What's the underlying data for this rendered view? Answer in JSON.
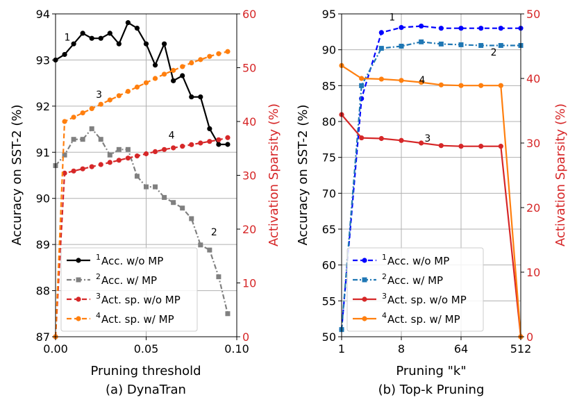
{
  "colors": {
    "acc_wo_mp": "#000000",
    "acc_w_mp": "#808080",
    "act_wo_mp": "#d62728",
    "act_w_mp": "#ff7f0e",
    "acc_wo_mp_b": "#0000ff",
    "acc_w_mp_b": "#1f77b4",
    "grid": "#b0b0b0",
    "axis_red": "#d62728"
  },
  "chart_data": [
    {
      "type": "line",
      "caption": "(a) DynaTran",
      "xlabel": "Pruning threshold",
      "ylabel": "Accuracy on SST-2 (%)",
      "y2label": "Activation Sparsity (%)",
      "xlim": [
        0.0,
        0.1
      ],
      "ylim": [
        87,
        94
      ],
      "y2lim": [
        0,
        60
      ],
      "xticks": [
        0.0,
        0.05,
        0.1
      ],
      "xtick_labels": [
        "0.00",
        "0.05",
        "0.10"
      ],
      "yticks": [
        87,
        88,
        89,
        90,
        91,
        92,
        93,
        94
      ],
      "y2ticks": [
        0,
        10,
        20,
        30,
        40,
        50,
        60
      ],
      "legend_position": "lower-left",
      "series": [
        {
          "name": "Acc. w/o MP",
          "sup": "1",
          "axis": "left",
          "style": "solid",
          "marker": "circle",
          "color": "#000000",
          "x": [
            0.0,
            0.005,
            0.01,
            0.015,
            0.02,
            0.025,
            0.03,
            0.035,
            0.04,
            0.045,
            0.05,
            0.055,
            0.06,
            0.065,
            0.07,
            0.075,
            0.08,
            0.085,
            0.09,
            0.095
          ],
          "y": [
            93.0,
            93.12,
            93.35,
            93.58,
            93.47,
            93.47,
            93.58,
            93.35,
            93.81,
            93.69,
            93.35,
            92.89,
            93.35,
            92.55,
            92.66,
            92.2,
            92.2,
            91.51,
            91.17,
            91.17
          ]
        },
        {
          "name": "Acc. w/ MP",
          "sup": "2",
          "axis": "left",
          "style": "dashdot",
          "marker": "square",
          "color": "#808080",
          "x": [
            0.0,
            0.005,
            0.01,
            0.015,
            0.02,
            0.025,
            0.03,
            0.035,
            0.04,
            0.045,
            0.05,
            0.055,
            0.06,
            0.065,
            0.07,
            0.075,
            0.08,
            0.085,
            0.09,
            0.095
          ],
          "y": [
            90.71,
            90.94,
            91.28,
            91.28,
            91.51,
            91.28,
            90.94,
            91.06,
            91.06,
            90.48,
            90.25,
            90.25,
            90.02,
            89.91,
            89.79,
            89.56,
            88.99,
            88.88,
            88.3,
            87.5
          ]
        },
        {
          "name": "Act. sp. w/o MP",
          "sup": "3",
          "axis": "right",
          "style": "dashed",
          "marker": "circle",
          "color": "#d62728",
          "x": [
            0.0,
            0.005,
            0.01,
            0.015,
            0.02,
            0.025,
            0.03,
            0.035,
            0.04,
            0.045,
            0.05,
            0.055,
            0.06,
            0.065,
            0.07,
            0.075,
            0.08,
            0.085,
            0.09,
            0.095
          ],
          "y": [
            0.0,
            30.4,
            30.8,
            31.2,
            31.6,
            32.0,
            32.4,
            32.8,
            33.2,
            33.6,
            34.0,
            34.4,
            34.8,
            35.1,
            35.4,
            35.7,
            36.0,
            36.3,
            36.6,
            37.0
          ]
        },
        {
          "name": "Act. sp. w/ MP",
          "sup": "4",
          "axis": "right",
          "style": "dashed",
          "marker": "circle",
          "color": "#ff7f0e",
          "x": [
            0.0,
            0.005,
            0.01,
            0.015,
            0.02,
            0.025,
            0.03,
            0.035,
            0.04,
            0.045,
            0.05,
            0.055,
            0.06,
            0.065,
            0.07,
            0.075,
            0.08,
            0.085,
            0.09,
            0.095
          ],
          "y": [
            0.0,
            40.0,
            40.8,
            41.6,
            42.4,
            43.2,
            44.0,
            44.8,
            45.6,
            46.4,
            47.2,
            48.0,
            48.8,
            49.5,
            50.2,
            50.9,
            51.5,
            52.1,
            52.6,
            53.0
          ]
        }
      ],
      "annotations": [
        {
          "text": "1",
          "x": 0.0065,
          "y": 93.42,
          "axis": "left"
        },
        {
          "text": "2",
          "x": 0.0875,
          "y": 89.2,
          "axis": "left"
        },
        {
          "text": "3",
          "x": 0.024,
          "y": 92.18,
          "axis": "left"
        },
        {
          "text": "4",
          "x": 0.064,
          "y": 91.3,
          "axis": "left"
        }
      ]
    },
    {
      "type": "line",
      "caption": "(b) Top-k Pruning",
      "xlabel": "Pruning \"k\"",
      "ylabel": "Accuracy on SST-2 (%)",
      "y2label": "Activation Sparsity (%)",
      "xscale": "log2",
      "xlim": [
        1,
        512
      ],
      "ylim": [
        50,
        95
      ],
      "y2lim": [
        0,
        50
      ],
      "xticks": [
        1,
        8,
        64,
        512
      ],
      "xtick_labels": [
        "1",
        "8",
        "64",
        "512"
      ],
      "yticks": [
        50,
        55,
        60,
        65,
        70,
        75,
        80,
        85,
        90,
        95
      ],
      "y2ticks": [
        0,
        10,
        20,
        30,
        40,
        50
      ],
      "legend_position": "lower-left",
      "series": [
        {
          "name": "Acc. w/o MP",
          "sup": "1",
          "axis": "left",
          "style": "dashed",
          "marker": "circle",
          "color": "#0000ff",
          "x": [
            1,
            2,
            4,
            8,
            16,
            32,
            64,
            128,
            256,
            512
          ],
          "y": [
            51.0,
            83.2,
            92.4,
            93.1,
            93.3,
            93.0,
            93.0,
            93.0,
            93.0,
            93.0
          ]
        },
        {
          "name": "Acc. w/ MP",
          "sup": "2",
          "axis": "left",
          "style": "dashdot",
          "marker": "square",
          "color": "#1f77b4",
          "x": [
            1,
            2,
            4,
            8,
            16,
            32,
            64,
            128,
            256,
            512
          ],
          "y": [
            51.0,
            85.0,
            90.2,
            90.5,
            91.1,
            90.8,
            90.7,
            90.6,
            90.6,
            90.6
          ]
        },
        {
          "name": "Act. sp. w/o MP",
          "sup": "3",
          "axis": "right",
          "style": "solid",
          "marker": "circle",
          "color": "#d62728",
          "x": [
            1,
            2,
            4,
            8,
            16,
            32,
            64,
            128,
            256,
            512
          ],
          "y": [
            34.4,
            30.8,
            30.7,
            30.4,
            30.0,
            29.6,
            29.5,
            29.5,
            29.5,
            0.0
          ]
        },
        {
          "name": "Act. sp. w/ MP",
          "sup": "4",
          "axis": "right",
          "style": "solid",
          "marker": "circle",
          "color": "#ff7f0e",
          "x": [
            1,
            2,
            4,
            8,
            16,
            32,
            64,
            128,
            256,
            512
          ],
          "y": [
            42.0,
            40.0,
            39.9,
            39.7,
            39.4,
            39.0,
            38.9,
            38.9,
            38.9,
            0.0
          ]
        }
      ],
      "annotations": [
        {
          "text": "1",
          "x": 5.8,
          "y": 94.1,
          "axis": "left"
        },
        {
          "text": "2",
          "x": 200,
          "y": 89.2,
          "axis": "left"
        },
        {
          "text": "3",
          "x": 20,
          "y": 77.2,
          "axis": "left"
        },
        {
          "text": "4",
          "x": 16.5,
          "y": 85.3,
          "axis": "left"
        }
      ]
    }
  ]
}
